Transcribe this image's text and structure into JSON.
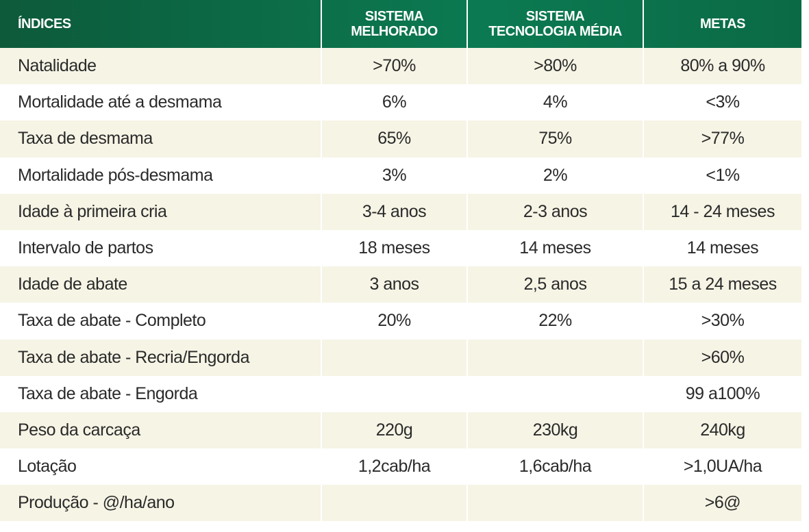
{
  "table": {
    "header": [
      [
        "ÍNDICES"
      ],
      [
        "SISTEMA",
        "MELHORADO"
      ],
      [
        "SISTEMA",
        "TECNOLOGIA MÉDIA"
      ],
      [
        "METAS"
      ]
    ],
    "rows": [
      [
        "Natalidade",
        ">70%",
        ">80%",
        "80% a 90%"
      ],
      [
        "Mortalidade até a desmama",
        "6%",
        "4%",
        "<3%"
      ],
      [
        "Taxa de desmama",
        "65%",
        "75%",
        ">77%"
      ],
      [
        "Mortalidade pós-desmama",
        "3%",
        "2%",
        "<1%"
      ],
      [
        "Idade à primeira cria",
        "3-4 anos",
        "2-3 anos",
        "14 - 24 meses"
      ],
      [
        "Intervalo de partos",
        "18 meses",
        "14 meses",
        "14 meses"
      ],
      [
        "Idade de abate",
        "3 anos",
        "2,5 anos",
        "15 a 24 meses"
      ],
      [
        "Taxa de abate - Completo",
        "20%",
        "22%",
        ">30%"
      ],
      [
        "Taxa de abate - Recria/Engorda",
        null,
        null,
        ">60%"
      ],
      [
        "Taxa de abate - Engorda",
        null,
        null,
        "99 a100%"
      ],
      [
        "Peso da carcaça",
        "220g",
        "230kg",
        "240kg"
      ],
      [
        "Lotação",
        "1,2cab/ha",
        "1,6cab/ha",
        ">1,0UA/ha"
      ],
      [
        "Produção - @/ha/ano",
        null,
        null,
        ">6@"
      ]
    ]
  }
}
